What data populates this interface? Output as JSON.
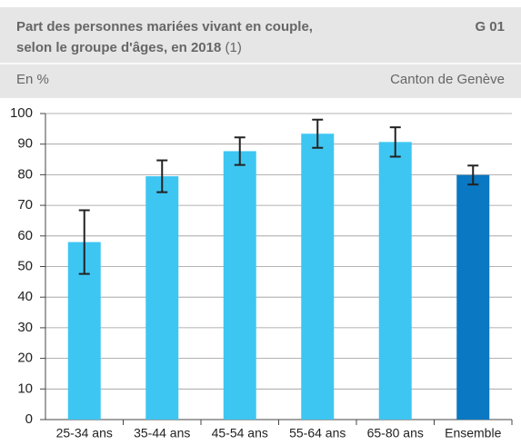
{
  "chart_data": {
    "type": "bar",
    "title": "Part des personnes mariées vivant en couple, selon le groupe d'âges, en 2018",
    "title_note": "(1)",
    "code": "G 01",
    "subtitle": "En %",
    "source": "Canton de Genève",
    "categories": [
      "25-34 ans",
      "35-44 ans",
      "45-54 ans",
      "55-64 ans",
      "65-80 ans",
      "Ensemble"
    ],
    "values": [
      58,
      79.5,
      87.7,
      93.4,
      90.7,
      79.9
    ],
    "errors": [
      10.4,
      5.2,
      4.5,
      4.6,
      4.8,
      3.1
    ],
    "colors": [
      "#3ec6f2",
      "#3ec6f2",
      "#3ec6f2",
      "#3ec6f2",
      "#3ec6f2",
      "#0a78c2"
    ],
    "ylim": [
      0,
      100
    ],
    "yticks": [
      0,
      10,
      20,
      30,
      40,
      50,
      60,
      70,
      80,
      90,
      100
    ],
    "grid": true
  }
}
